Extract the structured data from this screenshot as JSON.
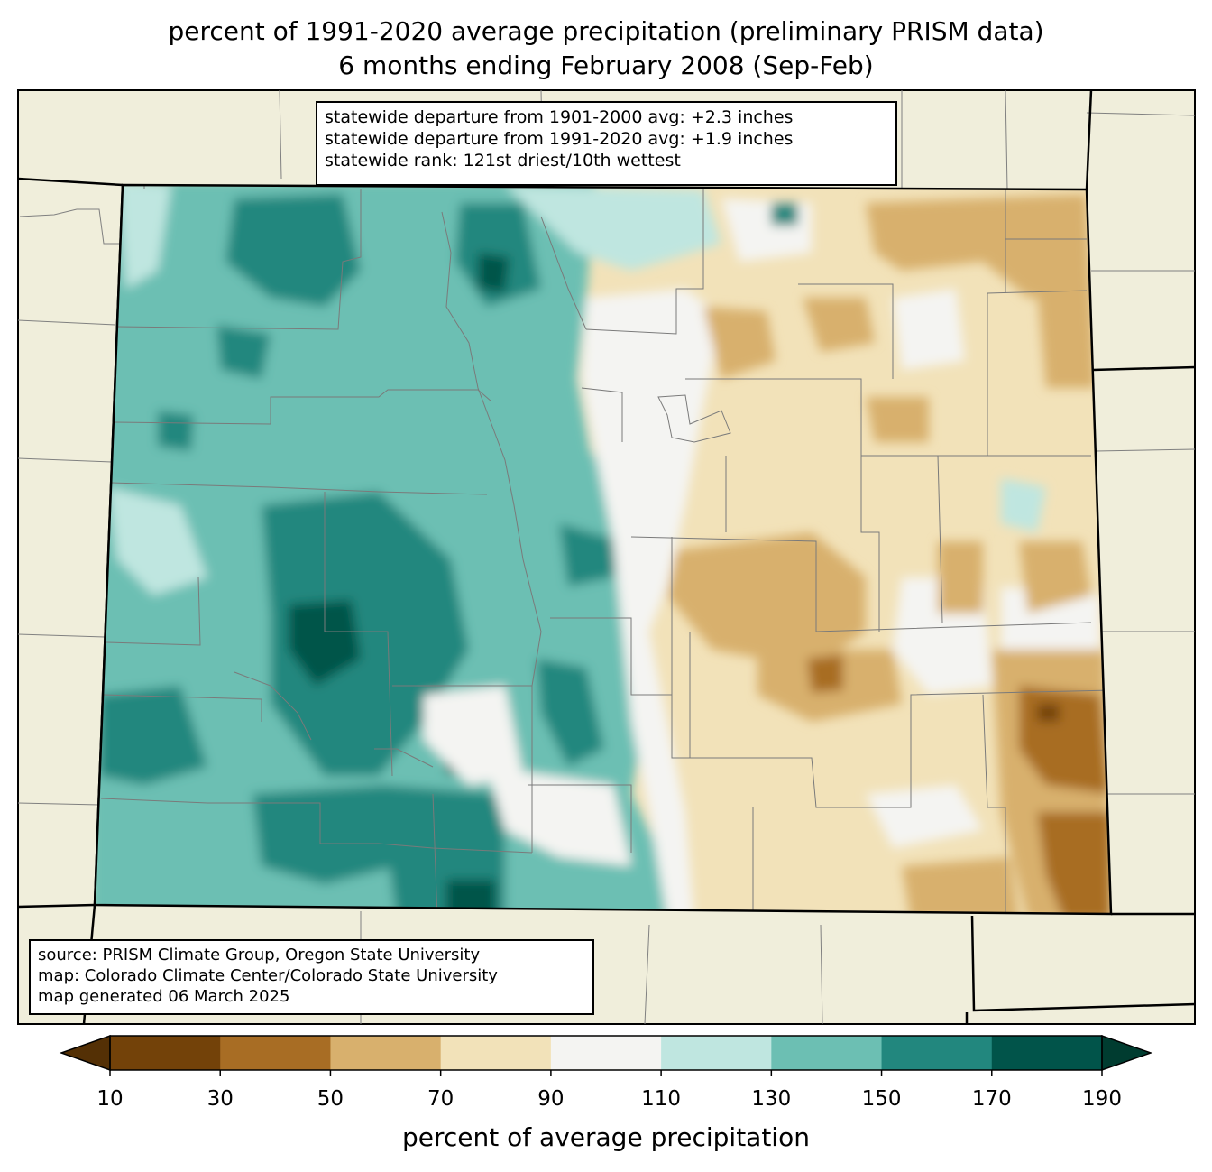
{
  "title": {
    "line1": "percent of 1991-2020 average precipitation (preliminary PRISM data)",
    "line2": "6 months ending February 2008 (Sep-Feb)"
  },
  "stats_box": {
    "lines": [
      "statewide departure from 1901-2000 avg: +2.3 inches",
      "statewide departure from 1991-2020 avg: +1.9 inches",
      "statewide rank: 121st driest/10th wettest"
    ]
  },
  "source_box": {
    "lines": [
      "source: PRISM Climate Group, Oregon State University",
      "map: Colorado Climate Center/Colorado State University",
      "map generated 06 March 2025"
    ]
  },
  "colorbar": {
    "label": "percent of average precipitation",
    "ticks": [
      "10",
      "30",
      "50",
      "70",
      "90",
      "110",
      "130",
      "150",
      "170",
      "190"
    ],
    "colors": [
      "#734209",
      "#a86d24",
      "#d8b06d",
      "#f2e2b9",
      "#f4f4f2",
      "#bfe6e0",
      "#6cbfb3",
      "#22877e",
      "#01544a"
    ],
    "under_color": "#543005",
    "over_color": "#003c30"
  },
  "map_colors": {
    "land": "#f0eedb",
    "very_dry": "#a86d24",
    "dry": "#d8b06d",
    "slightly_dry": "#f2e2b9",
    "near_normal": "#f4f4f2",
    "slightly_wet": "#bfe6e0",
    "wet": "#6cbfb3",
    "very_wet": "#22877e",
    "extremely_wet": "#01544a"
  }
}
